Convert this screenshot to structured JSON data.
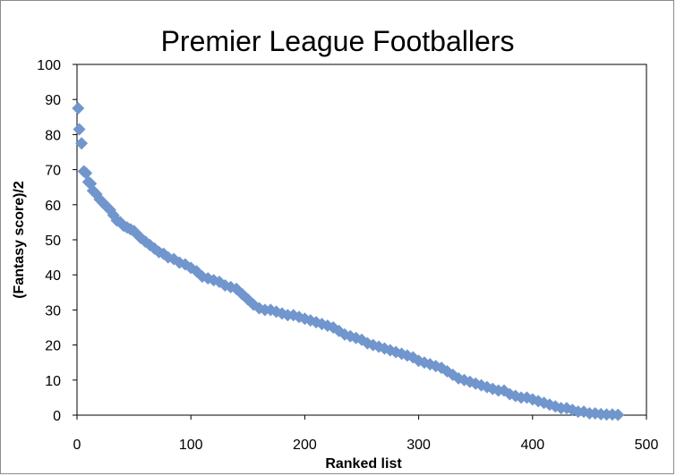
{
  "chart_data": {
    "type": "scatter",
    "title": "Premier League Footballers",
    "xlabel": "Ranked list",
    "ylabel": "(Fantasy score)/2",
    "xlim": [
      0,
      500
    ],
    "ylim": [
      0,
      100
    ],
    "xticks": [
      0,
      100,
      200,
      300,
      400,
      500
    ],
    "yticks": [
      0,
      10,
      20,
      30,
      40,
      50,
      60,
      70,
      80,
      90,
      100
    ],
    "grid": false,
    "legend": "none",
    "marker": "diamond",
    "marker_color": "#7196cd",
    "series": [
      {
        "points": [
          [
            1,
            87.5
          ],
          [
            2,
            81.5
          ],
          [
            4,
            77.5
          ],
          [
            6,
            69.5
          ],
          [
            8,
            69
          ],
          [
            10,
            66.5
          ],
          [
            12,
            66
          ],
          [
            14,
            64
          ],
          [
            17,
            63
          ],
          [
            20,
            61.5
          ],
          [
            23,
            60.5
          ],
          [
            26,
            59.5
          ],
          [
            29,
            58.5
          ],
          [
            32,
            57
          ],
          [
            35,
            55.5
          ],
          [
            38,
            55
          ],
          [
            41,
            54
          ],
          [
            44,
            53.5
          ],
          [
            47,
            53
          ],
          [
            50,
            52.5
          ],
          [
            53,
            51.5
          ],
          [
            56,
            50.5
          ],
          [
            60,
            49.5
          ],
          [
            64,
            48.5
          ],
          [
            68,
            47.5
          ],
          [
            72,
            46.5
          ],
          [
            76,
            46
          ],
          [
            80,
            45
          ],
          [
            85,
            44.5
          ],
          [
            90,
            43.5
          ],
          [
            95,
            43
          ],
          [
            100,
            42
          ],
          [
            105,
            41
          ],
          [
            110,
            39.5
          ],
          [
            115,
            39
          ],
          [
            120,
            38.5
          ],
          [
            125,
            38
          ],
          [
            130,
            37
          ],
          [
            135,
            36.5
          ],
          [
            140,
            36
          ],
          [
            145,
            34.5
          ],
          [
            150,
            33
          ],
          [
            155,
            31.5
          ],
          [
            160,
            30.5
          ],
          [
            165,
            30
          ],
          [
            170,
            30
          ],
          [
            175,
            29.5
          ],
          [
            180,
            29
          ],
          [
            185,
            28.5
          ],
          [
            190,
            28.5
          ],
          [
            195,
            28
          ],
          [
            200,
            27.5
          ],
          [
            205,
            27
          ],
          [
            210,
            26.5
          ],
          [
            215,
            26
          ],
          [
            220,
            25.5
          ],
          [
            225,
            25
          ],
          [
            230,
            24
          ],
          [
            235,
            23
          ],
          [
            240,
            22.5
          ],
          [
            245,
            22
          ],
          [
            250,
            21.5
          ],
          [
            255,
            20.5
          ],
          [
            260,
            20
          ],
          [
            265,
            19.5
          ],
          [
            270,
            19
          ],
          [
            275,
            18.5
          ],
          [
            280,
            18
          ],
          [
            285,
            17.5
          ],
          [
            290,
            17
          ],
          [
            295,
            16.5
          ],
          [
            300,
            15.5
          ],
          [
            305,
            15
          ],
          [
            310,
            14.5
          ],
          [
            315,
            14
          ],
          [
            320,
            13.5
          ],
          [
            325,
            12.5
          ],
          [
            330,
            11.5
          ],
          [
            335,
            10.5
          ],
          [
            340,
            10
          ],
          [
            345,
            9.5
          ],
          [
            350,
            9
          ],
          [
            355,
            8.5
          ],
          [
            360,
            8
          ],
          [
            365,
            7.5
          ],
          [
            370,
            7
          ],
          [
            375,
            7
          ],
          [
            380,
            6
          ],
          [
            385,
            5.5
          ],
          [
            390,
            5
          ],
          [
            395,
            5
          ],
          [
            400,
            4.5
          ],
          [
            405,
            4
          ],
          [
            410,
            3.5
          ],
          [
            415,
            3
          ],
          [
            420,
            2.5
          ],
          [
            425,
            2
          ],
          [
            430,
            2
          ],
          [
            435,
            1.5
          ],
          [
            440,
            1
          ],
          [
            445,
            1
          ],
          [
            450,
            0.5
          ],
          [
            455,
            0.5
          ],
          [
            460,
            0.3
          ],
          [
            465,
            0.2
          ],
          [
            470,
            0.2
          ],
          [
            475,
            0.1
          ]
        ]
      }
    ]
  }
}
